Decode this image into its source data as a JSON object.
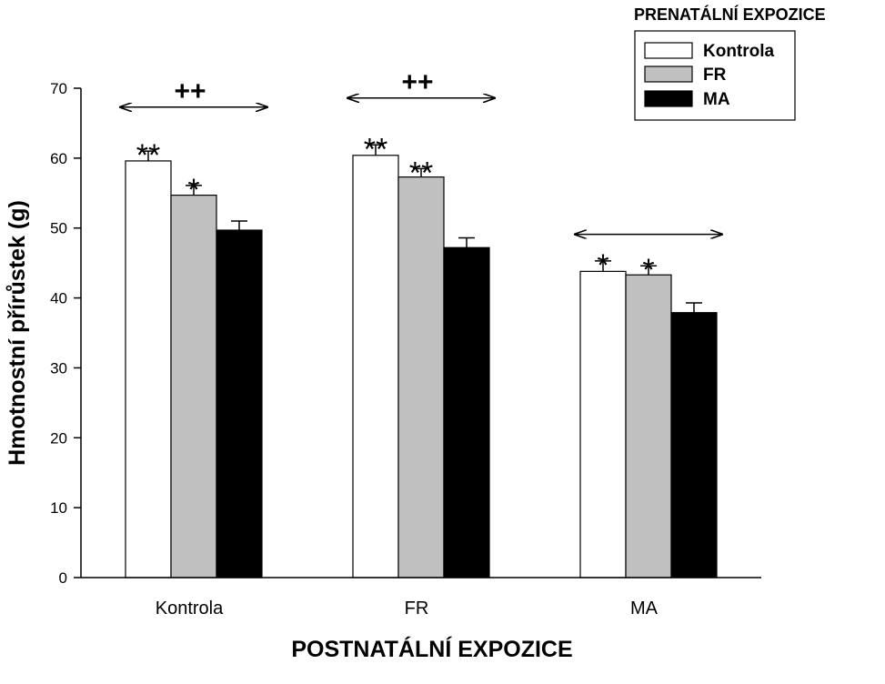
{
  "chart_data": {
    "type": "bar",
    "xlabel": "POSTNATÁLNÍ EXPOZICE",
    "ylabel": "Hmotnostní přírůstek (g)",
    "ylim": [
      0,
      70
    ],
    "yticks": [
      0,
      10,
      20,
      30,
      40,
      50,
      60,
      70
    ],
    "categories": [
      "Kontrola",
      "FR",
      "MA"
    ],
    "legend_title": "PRENATÁLNÍ EXPOZICE",
    "legend_placement": "top-right",
    "grid": false,
    "series": [
      {
        "name": "Kontrola",
        "color": "#ffffff",
        "values": [
          59.6,
          60.4,
          43.8
        ],
        "errors": [
          1.4,
          1.5,
          1.5
        ]
      },
      {
        "name": "FR",
        "color": "#c0c0c0",
        "values": [
          54.7,
          57.3,
          43.3
        ],
        "errors": [
          1.4,
          1.2,
          1.3
        ]
      },
      {
        "name": "MA",
        "color": "#000000",
        "values": [
          49.7,
          47.2,
          37.9
        ],
        "errors": [
          1.3,
          1.4,
          1.4
        ]
      }
    ],
    "bar_annotations": [
      [
        "**",
        "*",
        ""
      ],
      [
        "**",
        "**",
        ""
      ],
      [
        "*",
        "*",
        ""
      ]
    ],
    "group_annotations": [
      {
        "label": "++",
        "y": 67.3
      },
      {
        "label": "++",
        "y": 68.6
      },
      {
        "label": "",
        "y": 49.1
      }
    ]
  }
}
